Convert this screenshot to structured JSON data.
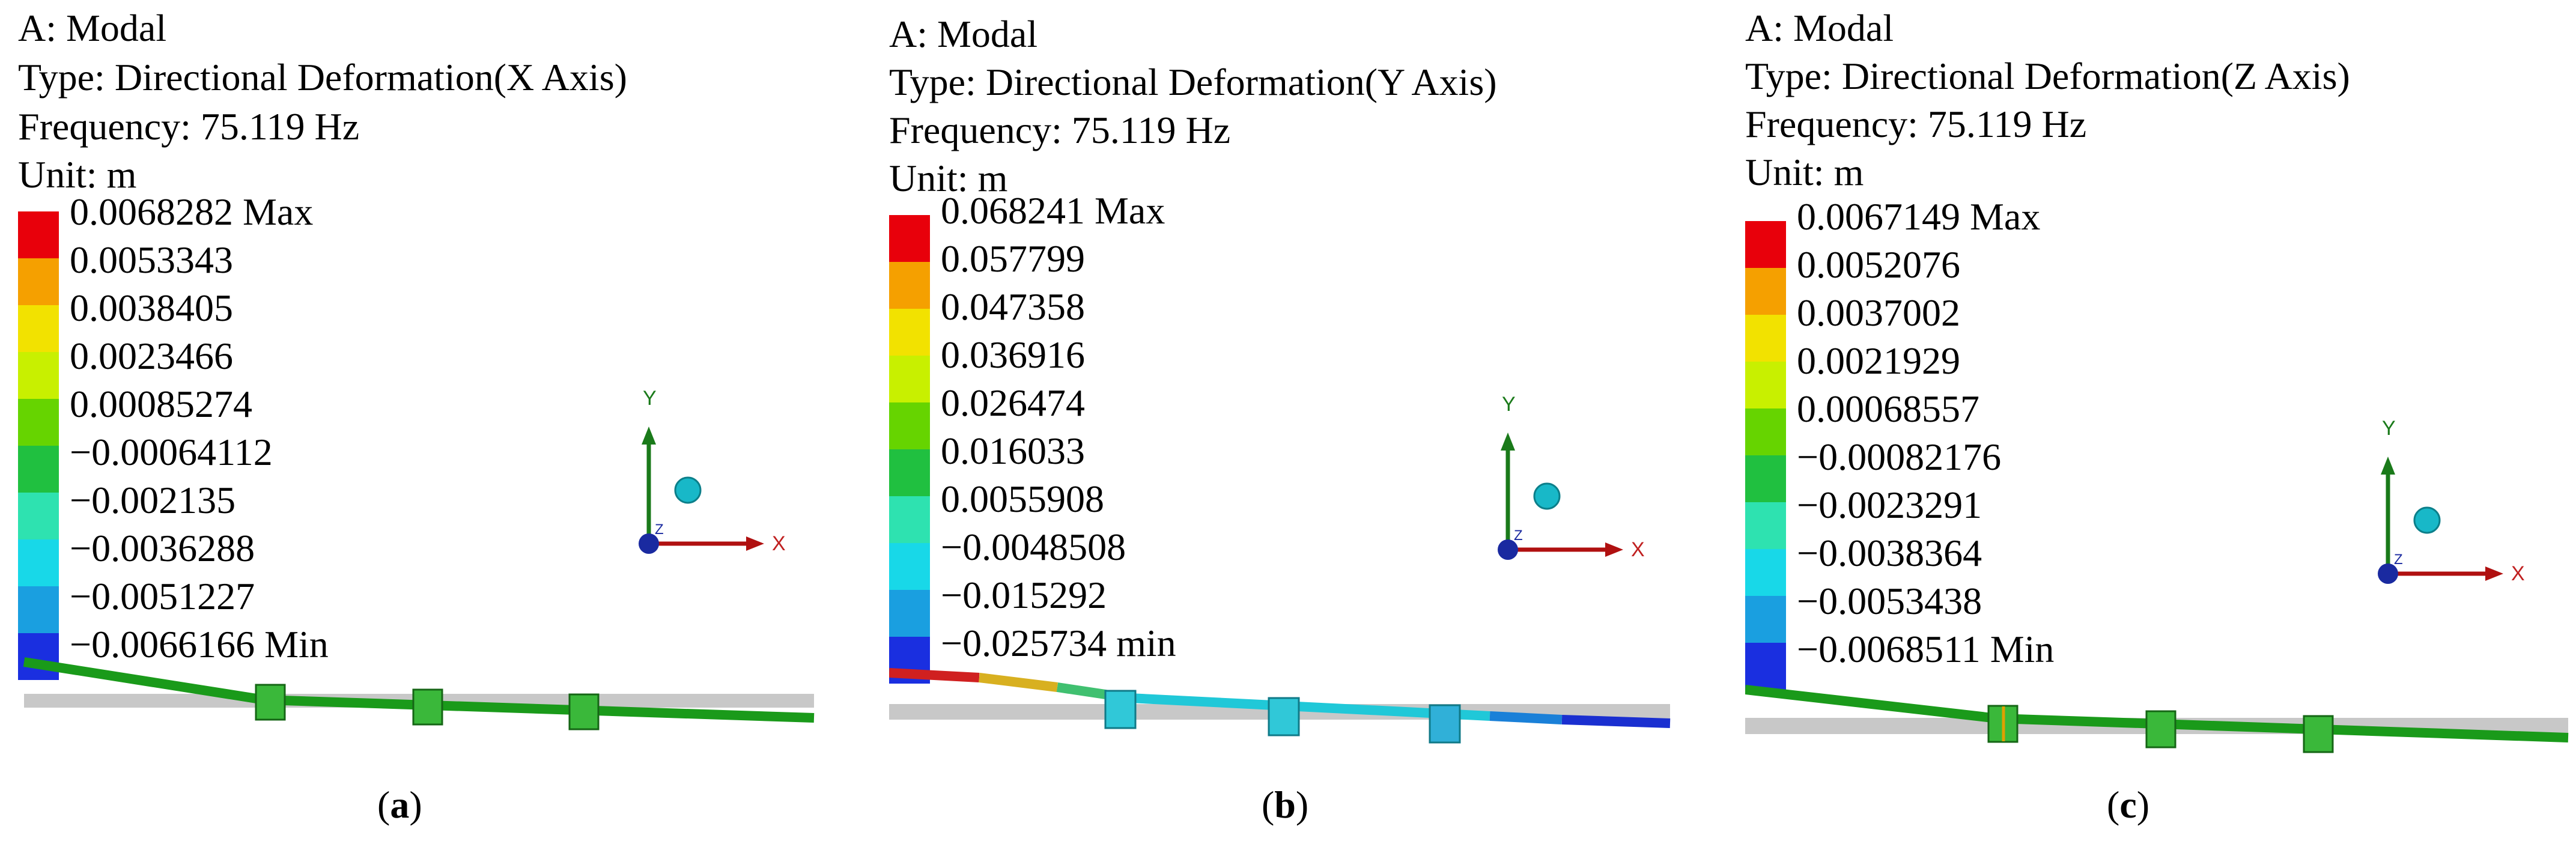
{
  "panels": [
    {
      "analysis": "A: Modal",
      "type": "Type: Directional Deformation(X Axis)",
      "frequency": "Frequency: 75.119 Hz",
      "unit": "Unit: m",
      "legend": [
        "0.0068282 Max",
        "0.0053343",
        "0.0038405",
        "0.0023466",
        "0.00085274",
        "−0.00064112",
        "−0.002135",
        "−0.0036288",
        "−0.0051227",
        "−0.0066166 Min"
      ],
      "axes": {
        "y": "Y",
        "z": "Z",
        "x": "X"
      },
      "caption_letter": "a"
    },
    {
      "analysis": "A: Modal",
      "type": "Type: Directional Deformation(Y Axis)",
      "frequency": "Frequency: 75.119 Hz",
      "unit": "Unit: m",
      "legend": [
        "0.068241 Max",
        "0.057799",
        "0.047358",
        "0.036916",
        "0.026474",
        "0.016033",
        "0.0055908",
        "−0.0048508",
        "−0.015292",
        "−0.025734 min"
      ],
      "axes": {
        "y": "Y",
        "z": "Z",
        "x": "X"
      },
      "caption_letter": "b"
    },
    {
      "analysis": "A: Modal",
      "type": "Type: Directional Deformation(Z Axis)",
      "frequency": "Frequency: 75.119 Hz",
      "unit": "Unit: m",
      "legend": [
        "0.0067149 Max",
        "0.0052076",
        "0.0037002",
        "0.0021929",
        "0.00068557",
        "−0.00082176",
        "−0.0023291",
        "−0.0038364",
        "−0.0053438",
        "−0.0068511 Min"
      ],
      "axes": {
        "y": "Y",
        "z": "Z",
        "x": "X"
      },
      "caption_letter": "c"
    }
  ],
  "legend_colors": [
    "#e8000b",
    "#f5a000",
    "#f2e200",
    "#c8f000",
    "#66d400",
    "#20c040",
    "#2ee2b0",
    "#18d8e8",
    "#1a9fe0",
    "#1a2fe0"
  ],
  "axis_colors": {
    "y": "#1a7a1a",
    "x": "#b01010",
    "z": "#1a2aa0",
    "sphere": "#18b8c8"
  }
}
